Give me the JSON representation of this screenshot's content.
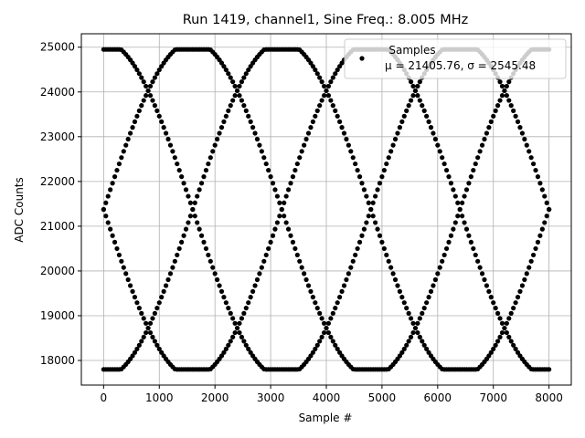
{
  "chart_data": {
    "type": "scatter",
    "title": "Run 1419, channel1, Sine Freq.: 8.005 MHz",
    "xlabel": "Sample #",
    "ylabel": "ADC Counts",
    "xlim": [
      -400,
      8400
    ],
    "ylim": [
      17450,
      25300
    ],
    "xticks": [
      0,
      1000,
      2000,
      3000,
      4000,
      5000,
      6000,
      7000,
      8000
    ],
    "yticks": [
      18000,
      19000,
      20000,
      21000,
      22000,
      23000,
      24000,
      25000
    ],
    "grid": true,
    "legend": {
      "placement": "top-right",
      "title": "Samples",
      "label": "μ = 21405.76, σ = 2545.48"
    },
    "series": [
      {
        "name": "Samples",
        "marker": "circle",
        "color": "#000000",
        "x_start": 0,
        "x_end": 8000,
        "x_step": 40,
        "waveform": {
          "form": "sine-aliased",
          "clip_min": 17800,
          "clip_max": 24950,
          "center": 21375,
          "amplitude": 3750,
          "trace_phases_deg": [
            90,
            180,
            270,
            0
          ],
          "trace_period": 6400
        }
      }
    ],
    "colors": {
      "markers": "#000000",
      "grid": "#b0b0b0",
      "axes": "#000000",
      "background": "#ffffff"
    }
  }
}
